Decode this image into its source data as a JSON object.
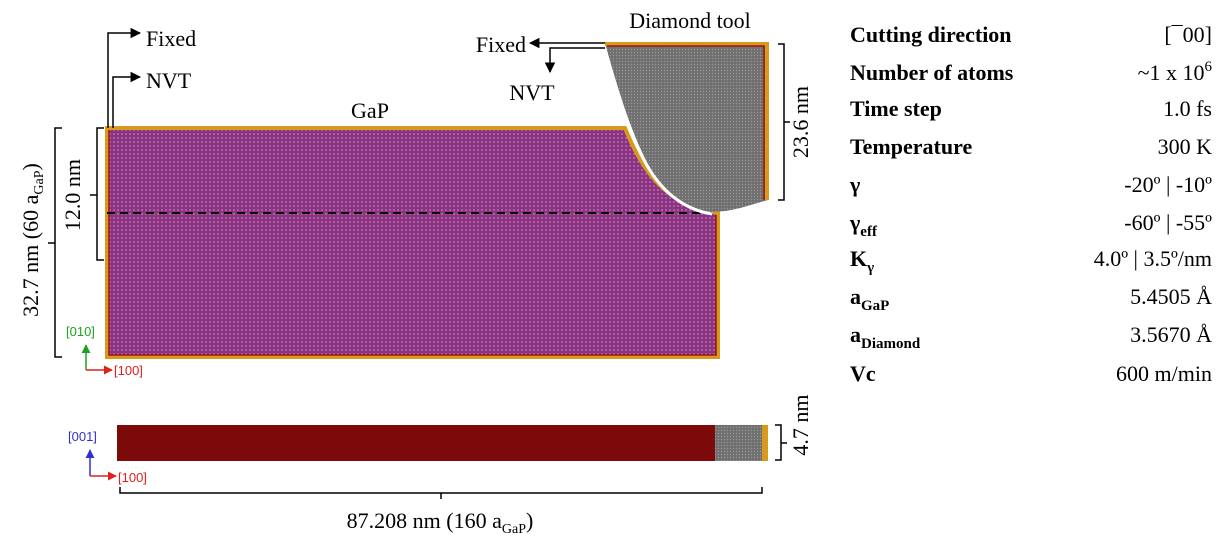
{
  "labels": {
    "fixed_left": "Fixed",
    "nvt_left": "NVT",
    "workpiece": "GaP",
    "tool": "Diamond tool",
    "fixed_tool": "Fixed",
    "nvt_tool": "NVT",
    "tool_height": "23.6 nm",
    "cut_depth": "12.0 nm",
    "height_main": "32.7 nm (60 a",
    "height_sub": "GaP",
    "height_end": ")",
    "axis_y": "[010]",
    "axis_x": "[100]",
    "axis_z": "[001]",
    "axis_x2": "[100]",
    "thickness": "4.7 nm",
    "length_main": "87.208 nm (160 a",
    "length_sub": "GaP",
    "length_end": ")"
  },
  "parameters": [
    {
      "name": "Cutting direction",
      "value": "[¯00]"
    },
    {
      "name": "Number of atoms",
      "value": "~1 x 10",
      "value_sup": "6"
    },
    {
      "name": "Time step",
      "value": "1.0 fs"
    },
    {
      "name": "Temperature",
      "value": "300 K"
    },
    {
      "name": "γ",
      "value": "-20º | -10º"
    },
    {
      "name": "γ",
      "name_sub": "eff",
      "value": "-60º | -55º"
    },
    {
      "name": "K",
      "name_sub": "γ",
      "value": "4.0º | 3.5º/nm"
    },
    {
      "name": "a",
      "name_sub": "GaP",
      "value": "5.4505 Å"
    },
    {
      "name": "a",
      "name_sub": "Diamond",
      "value": "3.5670 Å"
    },
    {
      "name": "Vc",
      "value": "600 m/min"
    }
  ]
}
